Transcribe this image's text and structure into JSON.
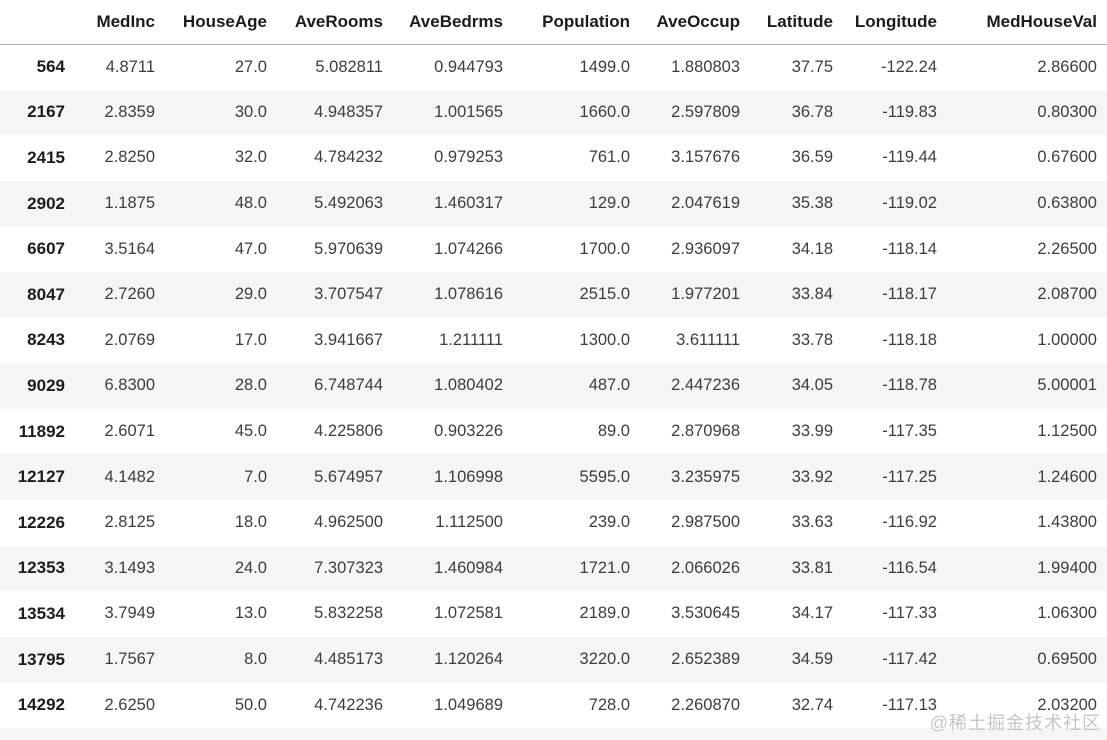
{
  "table": {
    "columns": [
      "",
      "MedInc",
      "HouseAge",
      "AveRooms",
      "AveBedrms",
      "Population",
      "AveOccup",
      "Latitude",
      "Longitude",
      "MedHouseVal"
    ],
    "rows": [
      {
        "index": "564",
        "values": [
          "4.8711",
          "27.0",
          "5.082811",
          "0.944793",
          "1499.0",
          "1.880803",
          "37.75",
          "-122.24",
          "2.86600"
        ]
      },
      {
        "index": "2167",
        "values": [
          "2.8359",
          "30.0",
          "4.948357",
          "1.001565",
          "1660.0",
          "2.597809",
          "36.78",
          "-119.83",
          "0.80300"
        ]
      },
      {
        "index": "2415",
        "values": [
          "2.8250",
          "32.0",
          "4.784232",
          "0.979253",
          "761.0",
          "3.157676",
          "36.59",
          "-119.44",
          "0.67600"
        ]
      },
      {
        "index": "2902",
        "values": [
          "1.1875",
          "48.0",
          "5.492063",
          "1.460317",
          "129.0",
          "2.047619",
          "35.38",
          "-119.02",
          "0.63800"
        ]
      },
      {
        "index": "6607",
        "values": [
          "3.5164",
          "47.0",
          "5.970639",
          "1.074266",
          "1700.0",
          "2.936097",
          "34.18",
          "-118.14",
          "2.26500"
        ]
      },
      {
        "index": "8047",
        "values": [
          "2.7260",
          "29.0",
          "3.707547",
          "1.078616",
          "2515.0",
          "1.977201",
          "33.84",
          "-118.17",
          "2.08700"
        ]
      },
      {
        "index": "8243",
        "values": [
          "2.0769",
          "17.0",
          "3.941667",
          "1.211111",
          "1300.0",
          "3.611111",
          "33.78",
          "-118.18",
          "1.00000"
        ]
      },
      {
        "index": "9029",
        "values": [
          "6.8300",
          "28.0",
          "6.748744",
          "1.080402",
          "487.0",
          "2.447236",
          "34.05",
          "-118.78",
          "5.00001"
        ]
      },
      {
        "index": "11892",
        "values": [
          "2.6071",
          "45.0",
          "4.225806",
          "0.903226",
          "89.0",
          "2.870968",
          "33.99",
          "-117.35",
          "1.12500"
        ]
      },
      {
        "index": "12127",
        "values": [
          "4.1482",
          "7.0",
          "5.674957",
          "1.106998",
          "5595.0",
          "3.235975",
          "33.92",
          "-117.25",
          "1.24600"
        ]
      },
      {
        "index": "12226",
        "values": [
          "2.8125",
          "18.0",
          "4.962500",
          "1.112500",
          "239.0",
          "2.987500",
          "33.63",
          "-116.92",
          "1.43800"
        ]
      },
      {
        "index": "12353",
        "values": [
          "3.1493",
          "24.0",
          "7.307323",
          "1.460984",
          "1721.0",
          "2.066026",
          "33.81",
          "-116.54",
          "1.99400"
        ]
      },
      {
        "index": "13534",
        "values": [
          "3.7949",
          "13.0",
          "5.832258",
          "1.072581",
          "2189.0",
          "3.530645",
          "34.17",
          "-117.33",
          "1.06300"
        ]
      },
      {
        "index": "13795",
        "values": [
          "1.7567",
          "8.0",
          "4.485173",
          "1.120264",
          "3220.0",
          "2.652389",
          "34.59",
          "-117.42",
          "0.69500"
        ]
      },
      {
        "index": "14292",
        "values": [
          "2.6250",
          "50.0",
          "4.742236",
          "1.049689",
          "728.0",
          "2.260870",
          "32.74",
          "-117.13",
          "2.03200"
        ]
      }
    ]
  },
  "watermark": "@稀土掘金技术社区",
  "colors": {
    "row_stripe": "#f5f5f5",
    "header_border": "#b0b0b0",
    "header_text": "#1c1c1c",
    "cell_text": "#3d3d3d",
    "watermark_text": "#c5c5c5"
  },
  "chart_data": {
    "type": "table",
    "title": "",
    "columns": [
      "MedInc",
      "HouseAge",
      "AveRooms",
      "AveBedrms",
      "Population",
      "AveOccup",
      "Latitude",
      "Longitude",
      "MedHouseVal"
    ],
    "index": [
      564,
      2167,
      2415,
      2902,
      6607,
      8047,
      8243,
      9029,
      11892,
      12127,
      12226,
      12353,
      13534,
      13795,
      14292
    ],
    "rows": [
      [
        4.8711,
        27.0,
        5.082811,
        0.944793,
        1499.0,
        1.880803,
        37.75,
        -122.24,
        2.866
      ],
      [
        2.8359,
        30.0,
        4.948357,
        1.001565,
        1660.0,
        2.597809,
        36.78,
        -119.83,
        0.803
      ],
      [
        2.825,
        32.0,
        4.784232,
        0.979253,
        761.0,
        3.157676,
        36.59,
        -119.44,
        0.676
      ],
      [
        1.1875,
        48.0,
        5.492063,
        1.460317,
        129.0,
        2.047619,
        35.38,
        -119.02,
        0.638
      ],
      [
        3.5164,
        47.0,
        5.970639,
        1.074266,
        1700.0,
        2.936097,
        34.18,
        -118.14,
        2.265
      ],
      [
        2.726,
        29.0,
        3.707547,
        1.078616,
        2515.0,
        1.977201,
        33.84,
        -118.17,
        2.087
      ],
      [
        2.0769,
        17.0,
        3.941667,
        1.211111,
        1300.0,
        3.611111,
        33.78,
        -118.18,
        1.0
      ],
      [
        6.83,
        28.0,
        6.748744,
        1.080402,
        487.0,
        2.447236,
        34.05,
        -118.78,
        5.00001
      ],
      [
        2.6071,
        45.0,
        4.225806,
        0.903226,
        89.0,
        2.870968,
        33.99,
        -117.35,
        1.125
      ],
      [
        4.1482,
        7.0,
        5.674957,
        1.106998,
        5595.0,
        3.235975,
        33.92,
        -117.25,
        1.246
      ],
      [
        2.8125,
        18.0,
        4.9625,
        1.1125,
        239.0,
        2.9875,
        33.63,
        -116.92,
        1.438
      ],
      [
        3.1493,
        24.0,
        7.307323,
        1.460984,
        1721.0,
        2.066026,
        33.81,
        -116.54,
        1.994
      ],
      [
        3.7949,
        13.0,
        5.832258,
        1.072581,
        2189.0,
        3.530645,
        34.17,
        -117.33,
        1.063
      ],
      [
        1.7567,
        8.0,
        4.485173,
        1.120264,
        3220.0,
        2.652389,
        34.59,
        -117.42,
        0.695
      ],
      [
        2.625,
        50.0,
        4.742236,
        1.049689,
        728.0,
        2.26087,
        32.74,
        -117.13,
        2.032
      ]
    ],
    "layout_hints": {
      "striped_rows": true,
      "index_bold": true,
      "grid": false
    }
  }
}
